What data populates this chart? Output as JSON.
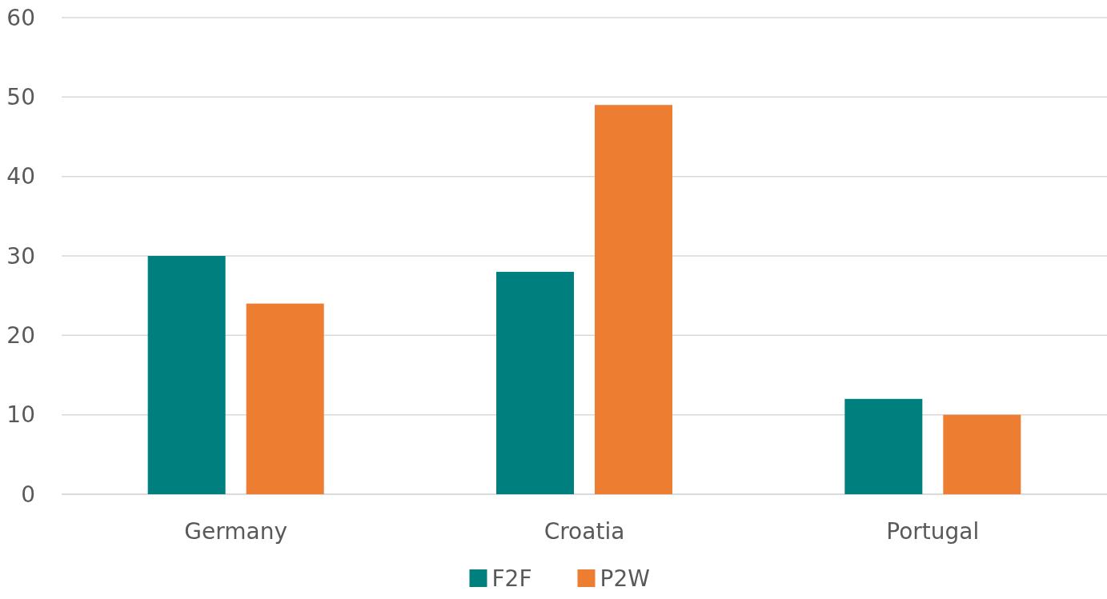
{
  "chart_data": {
    "type": "bar",
    "categories": [
      "Germany",
      "Croatia",
      "Portugal"
    ],
    "series": [
      {
        "name": "F2F",
        "color": "#007f7f",
        "values": [
          30,
          28,
          12
        ]
      },
      {
        "name": "P2W",
        "color": "#ed7d31",
        "values": [
          24,
          49,
          10
        ]
      }
    ],
    "ylim": [
      0,
      60
    ],
    "yticks": [
      0,
      10,
      20,
      30,
      40,
      50,
      60
    ],
    "grid": "y",
    "legend": "bottom"
  }
}
